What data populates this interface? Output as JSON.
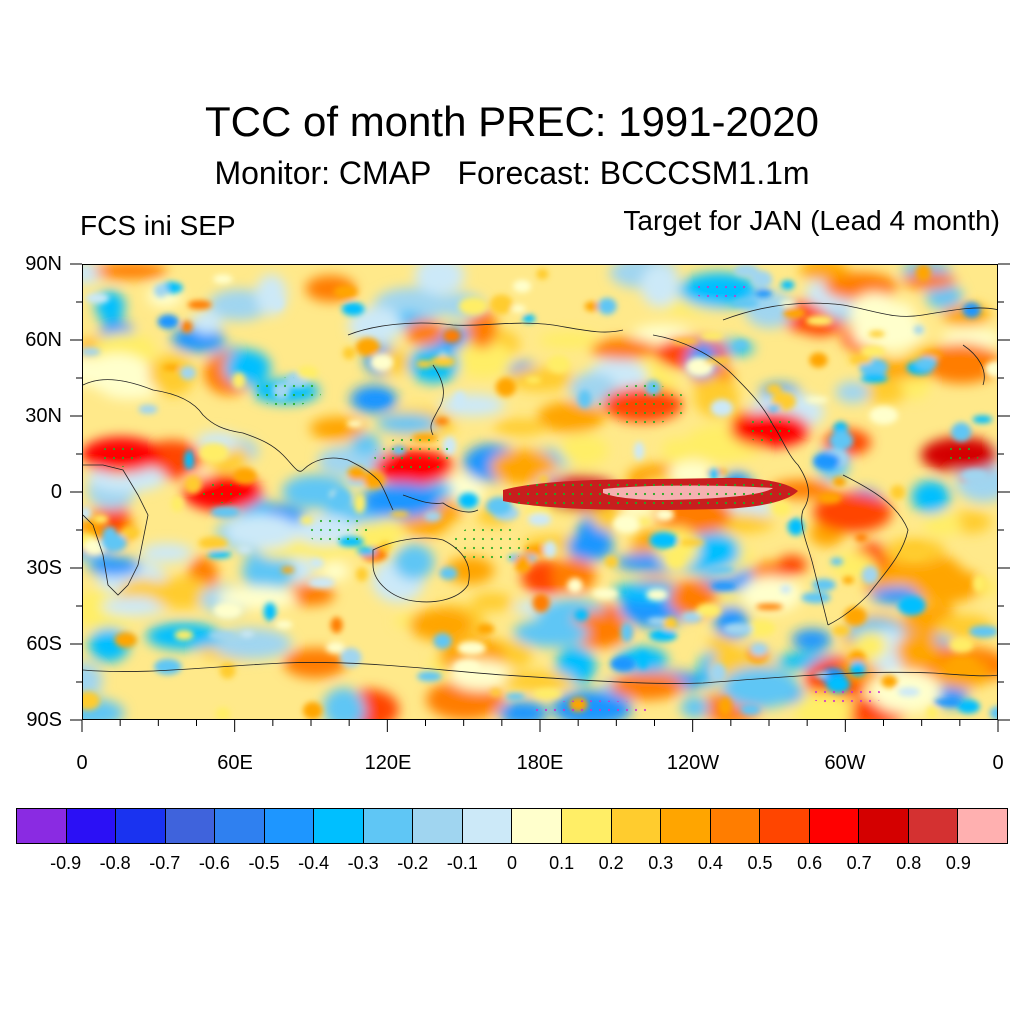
{
  "title": "TCC of month PREC: 1991-2020",
  "subtitle": "Monitor: CMAP   Forecast: BCCCSM1.1m",
  "left_label": "FCS ini SEP",
  "right_label": "Target for JAN (Lead 4 month)",
  "map": {
    "lat_ticks": [
      "90N",
      "60N",
      "30N",
      "0",
      "30S",
      "60S",
      "90S"
    ],
    "lon_ticks": [
      "0",
      "60E",
      "120E",
      "180E",
      "120W",
      "60W",
      "0"
    ],
    "features": [
      {
        "name": "equatorial-pacific-max",
        "lon": 195,
        "lat": 0,
        "value": 0.9
      },
      {
        "name": "west-pacific-warm",
        "lon": 130,
        "lat": 10,
        "value": 0.6
      },
      {
        "name": "north-pacific",
        "lon": 220,
        "lat": 35,
        "value": 0.5
      },
      {
        "name": "gulf-of-mexico",
        "lon": 270,
        "lat": 25,
        "value": 0.6
      },
      {
        "name": "africa-west",
        "lon": 15,
        "lat": 15,
        "value": 0.6
      },
      {
        "name": "indian-ocean",
        "lon": 55,
        "lat": 0,
        "value": 0.6
      },
      {
        "name": "maritime-continent",
        "lon": 125,
        "lat": -3,
        "value": -0.4
      },
      {
        "name": "atlantic-east",
        "lon": 345,
        "lat": 15,
        "value": 0.7
      },
      {
        "name": "arctic-blue",
        "lon": 250,
        "lat": 80,
        "value": -0.3
      },
      {
        "name": "southern-ocean-blue",
        "lon": 200,
        "lat": -85,
        "value": -0.5
      }
    ]
  },
  "colorbar": {
    "colors": [
      "#8a2be2",
      "#2b10f5",
      "#1a33f0",
      "#3f63dc",
      "#2f80f0",
      "#1e96ff",
      "#00bfff",
      "#5fc6f5",
      "#a0d5f0",
      "#cce9f8",
      "#ffffcc",
      "#ffee66",
      "#ffcc2e",
      "#ffa500",
      "#ff7d00",
      "#ff4500",
      "#ff0000",
      "#d40000",
      "#d43131",
      "#ffb0b0"
    ],
    "labels": [
      "-0.9",
      "-0.8",
      "-0.7",
      "-0.6",
      "-0.5",
      "-0.4",
      "-0.3",
      "-0.2",
      "-0.1",
      "0",
      "0.1",
      "0.2",
      "0.3",
      "0.4",
      "0.5",
      "0.6",
      "0.7",
      "0.8",
      "0.9"
    ]
  }
}
